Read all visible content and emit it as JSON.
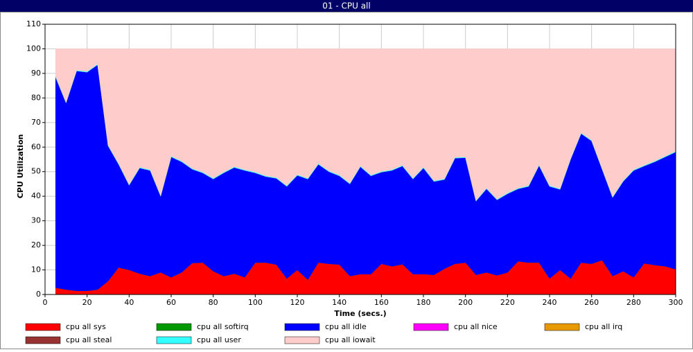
{
  "chart_data": {
    "type": "stacked_area",
    "title": "01 - CPU all",
    "x_label": "Time (secs.)",
    "y_label": "CPU Utilization",
    "x": [
      5,
      10,
      15,
      20,
      25,
      30,
      35,
      40,
      45,
      50,
      55,
      60,
      65,
      70,
      75,
      80,
      85,
      90,
      95,
      100,
      105,
      110,
      115,
      120,
      125,
      130,
      135,
      140,
      145,
      150,
      155,
      160,
      165,
      170,
      175,
      180,
      185,
      190,
      195,
      200,
      205,
      210,
      215,
      220,
      225,
      230,
      235,
      240,
      245,
      250,
      255,
      260,
      265,
      270,
      275,
      280,
      285,
      290,
      295,
      300
    ],
    "series": [
      {
        "name": "cpu all sys",
        "color": "#ff0000",
        "values": [
          2.8,
          2,
          1.5,
          1.5,
          2,
          5.5,
          11,
          10,
          8.5,
          7.5,
          9,
          7,
          9,
          12.8,
          13,
          9.5,
          7.5,
          8.5,
          7,
          13,
          13,
          12.2,
          6.5,
          10,
          6,
          13,
          12.5,
          12.2,
          7.5,
          8.3,
          8.3,
          12.5,
          11.5,
          12.3,
          8.3,
          8.3,
          8,
          10.5,
          12.5,
          13,
          8,
          9,
          7.8,
          9,
          13.5,
          13,
          13,
          6.5,
          10,
          6.5,
          13,
          12.5,
          14,
          7.5,
          9.5,
          7,
          12.7,
          12,
          11.5,
          10.3
        ]
      },
      {
        "name": "cpu all softirq",
        "color": "#009900",
        "values": [
          0,
          0,
          0,
          0,
          0,
          0,
          0,
          0,
          0,
          0,
          0,
          0,
          0,
          0,
          0,
          0,
          0,
          0,
          0,
          0,
          0,
          0,
          0,
          0,
          0,
          0,
          0,
          0,
          0,
          0,
          0,
          0,
          0,
          0,
          0,
          0,
          0,
          0,
          0,
          0,
          0,
          0,
          0,
          0,
          0,
          0,
          0,
          0,
          0,
          0,
          0,
          0,
          0,
          0,
          0,
          0,
          0,
          0,
          0,
          0
        ]
      },
      {
        "name": "cpu all idle",
        "color": "#0000ff",
        "values": [
          85.7,
          76,
          89.5,
          89,
          91.5,
          55,
          42,
          34.5,
          43,
          43,
          31,
          49,
          45,
          38.2,
          36.5,
          37.5,
          42,
          43.2,
          43.5,
          36.5,
          35,
          35.1,
          37.5,
          38.5,
          41,
          40,
          37.5,
          36.1,
          37.5,
          43.7,
          40,
          37.3,
          39,
          40,
          38.7,
          43.2,
          38,
          36.3,
          43,
          42.7,
          30,
          34,
          30.7,
          32,
          29.5,
          31,
          39.5,
          37.5,
          32.8,
          48.5,
          52.5,
          50,
          37,
          32,
          36.5,
          43.5,
          39.6,
          42,
          44.5,
          47.7
        ]
      },
      {
        "name": "cpu all nice",
        "color": "#ff00ff",
        "values": [
          0,
          0,
          0,
          0,
          0,
          0,
          0,
          0,
          0,
          0,
          0,
          0,
          0,
          0,
          0,
          0,
          0,
          0,
          0,
          0,
          0,
          0,
          0,
          0,
          0,
          0,
          0,
          0,
          0,
          0,
          0,
          0,
          0,
          0,
          0,
          0,
          0,
          0,
          0,
          0,
          0,
          0,
          0,
          0,
          0,
          0,
          0,
          0,
          0,
          0,
          0,
          0,
          0,
          0,
          0,
          0,
          0,
          0,
          0,
          0
        ]
      },
      {
        "name": "cpu all irq",
        "color": "#e69900",
        "values": [
          0,
          0,
          0,
          0,
          0,
          0,
          0,
          0,
          0,
          0,
          0,
          0,
          0,
          0,
          0,
          0,
          0,
          0,
          0,
          0,
          0,
          0,
          0,
          0,
          0,
          0,
          0,
          0,
          0,
          0,
          0,
          0,
          0,
          0,
          0,
          0,
          0,
          0,
          0,
          0,
          0,
          0,
          0,
          0,
          0,
          0,
          0,
          0,
          0,
          0,
          0,
          0,
          0,
          0,
          0,
          0,
          0,
          0,
          0,
          0
        ]
      },
      {
        "name": "cpu all steal",
        "color": "#993333",
        "values": [
          0,
          0,
          0,
          0,
          0,
          0,
          0,
          0,
          0,
          0,
          0,
          0,
          0,
          0,
          0,
          0,
          0,
          0,
          0,
          0,
          0,
          0,
          0,
          0,
          0,
          0,
          0,
          0,
          0,
          0,
          0,
          0,
          0,
          0,
          0,
          0,
          0,
          0,
          0,
          0,
          0,
          0,
          0,
          0,
          0,
          0,
          0,
          0,
          0,
          0,
          0,
          0,
          0,
          0,
          0,
          0,
          0,
          0,
          0,
          0
        ]
      },
      {
        "name": "cpu all user",
        "color": "#33ffff",
        "values": [
          0.3,
          0.3,
          0.3,
          0.3,
          0.3,
          0.3,
          0.3,
          0.3,
          0.3,
          0.3,
          0.3,
          0.3,
          0.3,
          0.3,
          0.3,
          0.3,
          0.3,
          0.3,
          0.3,
          0.3,
          0.3,
          0.3,
          0.3,
          0.3,
          0.3,
          0.3,
          0.3,
          0.3,
          0.3,
          0.3,
          0.3,
          0.3,
          0.3,
          0.3,
          0.3,
          0.3,
          0.3,
          0.3,
          0.3,
          0.3,
          0.3,
          0.3,
          0.3,
          0.3,
          0.3,
          0.3,
          0.3,
          0.3,
          0.3,
          0.3,
          0.3,
          0.3,
          0.3,
          0.3,
          0.3,
          0.3,
          0.3,
          0.3,
          0.3,
          0.3
        ]
      },
      {
        "name": "cpu all iowait",
        "color": "#ffcccc",
        "values": [
          11.2,
          21.7,
          8.7,
          9.2,
          6.2,
          39.2,
          46.7,
          55.2,
          48.2,
          49.2,
          59.7,
          43.7,
          45.7,
          48.7,
          50.2,
          52.7,
          50.2,
          48,
          49.2,
          50.2,
          51.7,
          52.4,
          55.7,
          51.2,
          52.7,
          46.7,
          49.7,
          51.4,
          54.7,
          47.7,
          51.4,
          49.9,
          49.2,
          47.4,
          52.7,
          48.2,
          53.7,
          52.9,
          44.2,
          44,
          61.7,
          56.7,
          61.2,
          58.7,
          56.7,
          55.7,
          47.2,
          55.7,
          56.9,
          44.7,
          34.2,
          37.2,
          48.7,
          60.2,
          53.7,
          49.2,
          47.4,
          45.7,
          43.7,
          41.7
        ]
      }
    ],
    "xlim": [
      0,
      300
    ],
    "xticks": [
      0,
      20,
      40,
      60,
      80,
      100,
      120,
      140,
      160,
      180,
      200,
      220,
      240,
      260,
      280,
      300
    ],
    "ylim": [
      0,
      110
    ],
    "yticks": [
      0,
      10,
      20,
      30,
      40,
      50,
      60,
      70,
      80,
      90,
      100,
      110
    ],
    "grid": true
  }
}
